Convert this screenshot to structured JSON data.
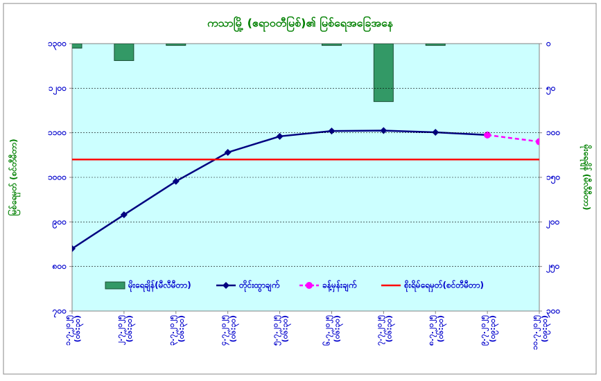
{
  "chart_data": {
    "type": "combo",
    "title": "ကသာမြို့ (ဧရာဝတီမြစ်)၏ မြစ်ရေအခြေအနေ",
    "y_label": "မြစ်ရေမှတ် (စင်တီမီတာ)",
    "y2_label": "မိုးရေချိန် (မီလီမီတာ)",
    "categories": [
      "၁.၇.၂၀၂၅",
      "၂.၇.၂၀၂၅",
      "၃.၇.၂၀၂၅",
      "၄.၇.၂၀၂၅",
      "၅.၇.၂၀၂၅",
      "၆.၇.၂၀၂၅",
      "၇.၇.၂၀၂၅",
      "၈.၇.၂၀၂၅",
      "၉.၇.၂၀၂၅",
      "၁၀.၇.၂၀၂၅"
    ],
    "category_times": [
      "(၀၆:၃၀)",
      "(၀၆:၃၀)",
      "(၀၆:၃၀)",
      "(၀၆:၃၀)",
      "(၀၆:၃၀)",
      "(၀၆:၃၀)",
      "(၀၆:၃၀)",
      "(၀၆:၃၀)",
      "(၀၉:၃၀)",
      "(၀၉:၃၀)"
    ],
    "ylim": [
      700,
      1300
    ],
    "yticks": [
      {
        "value": 700,
        "label": "၇၀၀"
      },
      {
        "value": 800,
        "label": "၈၀၀"
      },
      {
        "value": 900,
        "label": "၉၀၀"
      },
      {
        "value": 1000,
        "label": "၁၀၀၀"
      },
      {
        "value": 1100,
        "label": "၁၁၀၀"
      },
      {
        "value": 1200,
        "label": "၁၂၀၀"
      },
      {
        "value": 1300,
        "label": "၁၃၀၀"
      }
    ],
    "y2lim": [
      300,
      0
    ],
    "y2ticks": [
      {
        "value": 0,
        "label": "၀"
      },
      {
        "value": 50,
        "label": "၅၀"
      },
      {
        "value": 100,
        "label": "၁၀၀"
      },
      {
        "value": 150,
        "label": "၁၅၀"
      },
      {
        "value": 200,
        "label": "၂၀၀"
      },
      {
        "value": 250,
        "label": "၂၅၀"
      },
      {
        "value": 300,
        "label": "၃၀၀"
      }
    ],
    "grid": true,
    "series": [
      {
        "name": "မိုးရေချိန်(မီလီမီတာ)",
        "kind": "bar",
        "axis": "y2",
        "color": "#339966",
        "values": [
          5,
          19,
          2,
          0,
          0,
          2,
          65,
          2,
          null,
          null
        ]
      },
      {
        "name": "တိုင်းထွာချက်",
        "kind": "line",
        "color": "#000080",
        "marker": "diamond",
        "values": [
          840,
          916,
          991,
          1056,
          1092,
          1104,
          1105,
          1101,
          1095,
          null
        ]
      },
      {
        "name": "ခန့်မှန်းချက်",
        "kind": "line",
        "color": "#ff00ff",
        "marker": "circle",
        "dashed": true,
        "values": [
          null,
          null,
          null,
          null,
          null,
          null,
          null,
          null,
          1095,
          1080
        ]
      },
      {
        "name": "စိုးရိမ်ရေမှတ်(စင်တီမီတာ)",
        "kind": "line",
        "color": "#ff0000",
        "values": [
          1040,
          1040,
          1040,
          1040,
          1040,
          1040,
          1040,
          1040,
          1040,
          1040
        ]
      }
    ]
  }
}
